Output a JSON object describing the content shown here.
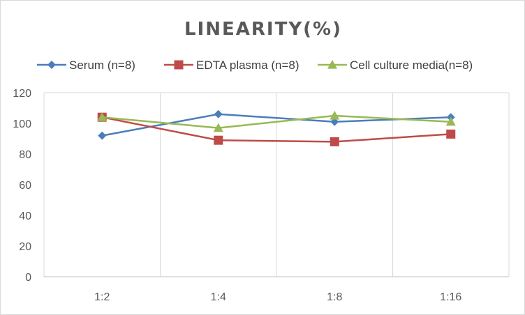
{
  "chart_data": {
    "type": "line",
    "title": "LINEARITY(%)",
    "xlabel": "",
    "ylabel": "",
    "categories": [
      "1:2",
      "1:4",
      "1:8",
      "1:16"
    ],
    "ylim": [
      0,
      120
    ],
    "yticks": [
      0,
      20,
      40,
      60,
      80,
      100,
      120
    ],
    "grid": "vertical",
    "legend_position": "top",
    "series": [
      {
        "name": "Serum (n=8)",
        "values": [
          92,
          106,
          101,
          104
        ],
        "color": "#4a7ebb",
        "marker": "diamond"
      },
      {
        "name": "EDTA plasma (n=8)",
        "values": [
          104,
          89,
          88,
          93
        ],
        "color": "#be4b48",
        "marker": "square"
      },
      {
        "name": "Cell culture media(n=8)",
        "values": [
          104,
          97,
          105,
          101
        ],
        "color": "#98b954",
        "marker": "triangle"
      }
    ]
  }
}
